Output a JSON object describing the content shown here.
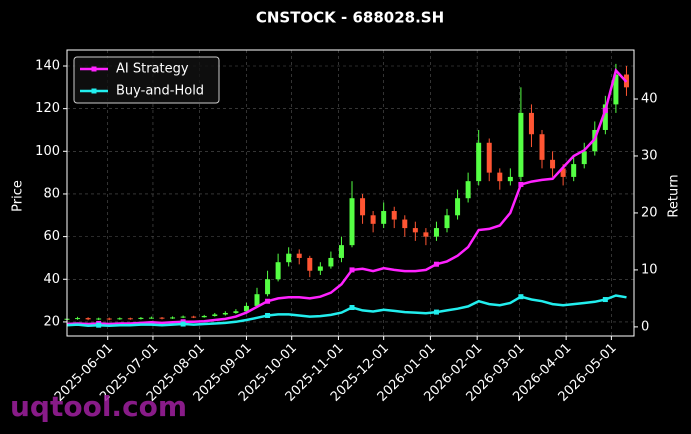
{
  "chart_data": {
    "type": "candlestick",
    "title": "CNSTOCK - 688028.SH",
    "ylabel": "Price",
    "y2label": "Return",
    "watermark": "uqtool.com",
    "grid": true,
    "legend_loc": "upper left",
    "up_color": "#55ff44",
    "down_color": "#ff5533",
    "xlim": [
      "2025-05-05",
      "2026-05-16"
    ],
    "xticks": [
      "2025-06-01",
      "2025-07-01",
      "2025-08-01",
      "2025-09-01",
      "2025-10-01",
      "2025-11-01",
      "2025-12-01",
      "2026-01-01",
      "2026-02-01",
      "2026-03-01",
      "2026-04-01",
      "2026-05-01"
    ],
    "ylim": [
      13.4,
      147.5
    ],
    "yticks": [
      20,
      40,
      60,
      80,
      100,
      120,
      140
    ],
    "y2lim": [
      -1.6,
      48.6
    ],
    "y2ticks": [
      0,
      10,
      20,
      30,
      40
    ],
    "x": [
      "2025-05-05",
      "2025-05-12",
      "2025-05-19",
      "2025-05-26",
      "2025-06-02",
      "2025-06-09",
      "2025-06-16",
      "2025-06-23",
      "2025-06-30",
      "2025-07-07",
      "2025-07-14",
      "2025-07-21",
      "2025-07-28",
      "2025-08-04",
      "2025-08-11",
      "2025-08-18",
      "2025-08-25",
      "2025-09-01",
      "2025-09-08",
      "2025-09-15",
      "2025-09-22",
      "2025-09-29",
      "2025-10-06",
      "2025-10-13",
      "2025-10-20",
      "2025-10-27",
      "2025-11-03",
      "2025-11-10",
      "2025-11-17",
      "2025-11-24",
      "2025-12-01",
      "2025-12-08",
      "2025-12-15",
      "2025-12-22",
      "2025-12-29",
      "2026-01-05",
      "2026-01-12",
      "2026-01-19",
      "2026-01-26",
      "2026-02-02",
      "2026-02-09",
      "2026-02-16",
      "2026-02-23",
      "2026-03-02",
      "2026-03-09",
      "2026-03-16",
      "2026-03-23",
      "2026-03-30",
      "2026-04-06",
      "2026-04-13",
      "2026-04-20",
      "2026-04-27",
      "2026-05-04",
      "2026-05-11"
    ],
    "open": [
      21.0,
      21.5,
      21.8,
      21.2,
      21.6,
      21.3,
      21.7,
      21.4,
      21.9,
      22.0,
      21.6,
      22.1,
      22.5,
      22.2,
      22.8,
      23.5,
      24.2,
      25.0,
      27.5,
      33.0,
      40.0,
      48.0,
      52.0,
      50.0,
      44.0,
      46.0,
      50.0,
      56.0,
      78.0,
      70.0,
      66.0,
      72.0,
      68.0,
      64.0,
      62.0,
      60.0,
      64.0,
      70.0,
      78.0,
      86.0,
      104.0,
      90.0,
      86.0,
      88.0,
      118.0,
      108.0,
      96.0,
      92.0,
      88.0,
      94.0,
      100.0,
      110.0,
      122.0,
      136.0
    ],
    "high": [
      22.3,
      22.4,
      22.2,
      22.0,
      22.0,
      22.1,
      22.0,
      22.3,
      22.5,
      22.3,
      22.6,
      23.0,
      22.9,
      23.3,
      24.2,
      25.0,
      26.0,
      29.0,
      36.0,
      44.0,
      52.0,
      55.0,
      54.0,
      51.0,
      48.0,
      53.0,
      60.0,
      86.0,
      80.0,
      72.0,
      76.0,
      74.0,
      70.0,
      67.0,
      64.0,
      67.0,
      73.0,
      82.0,
      90.0,
      110.0,
      106.0,
      92.0,
      92.0,
      130.0,
      122.0,
      110.0,
      100.0,
      94.0,
      98.0,
      104.0,
      114.0,
      126.0,
      141.0,
      140.0
    ],
    "low": [
      20.6,
      21.0,
      20.8,
      20.9,
      20.8,
      21.0,
      21.0,
      21.1,
      21.5,
      21.2,
      21.4,
      21.8,
      21.8,
      22.0,
      22.5,
      23.0,
      23.8,
      24.5,
      27.0,
      32.0,
      39.0,
      46.0,
      47.0,
      41.0,
      42.0,
      45.0,
      48.0,
      55.0,
      66.0,
      62.0,
      64.0,
      64.0,
      60.0,
      58.0,
      56.0,
      58.0,
      62.0,
      68.0,
      76.0,
      84.0,
      86.0,
      82.0,
      84.0,
      86.0,
      102.0,
      92.0,
      88.0,
      84.0,
      86.0,
      92.0,
      98.0,
      108.0,
      118.0,
      126.0
    ],
    "close": [
      21.5,
      21.8,
      21.2,
      21.6,
      21.3,
      21.7,
      21.4,
      21.9,
      22.0,
      21.6,
      22.1,
      22.5,
      22.2,
      22.8,
      23.5,
      24.2,
      25.0,
      27.5,
      33.0,
      40.0,
      48.0,
      52.0,
      50.0,
      44.0,
      46.0,
      50.0,
      56.0,
      78.0,
      70.0,
      66.0,
      72.0,
      68.0,
      64.0,
      62.0,
      60.0,
      64.0,
      70.0,
      78.0,
      86.0,
      104.0,
      90.0,
      86.0,
      88.0,
      118.0,
      108.0,
      96.0,
      92.0,
      88.0,
      94.0,
      100.0,
      110.0,
      122.0,
      136.0,
      130.0
    ],
    "series": [
      {
        "name": "AI Strategy",
        "color": "#ff22ff",
        "axis": "y2",
        "values": [
          0.5,
          0.6,
          0.5,
          0.6,
          0.5,
          0.6,
          0.6,
          0.7,
          0.8,
          0.7,
          0.8,
          0.9,
          0.9,
          1.0,
          1.2,
          1.4,
          1.8,
          2.5,
          3.5,
          4.5,
          5.0,
          5.2,
          5.2,
          5.0,
          5.3,
          6.0,
          7.5,
          10.0,
          10.2,
          9.8,
          10.3,
          10.0,
          9.8,
          9.8,
          10.0,
          11.0,
          11.5,
          12.5,
          14.0,
          17.0,
          17.2,
          17.8,
          20.0,
          25.0,
          25.5,
          25.8,
          26.0,
          28.0,
          30.0,
          31.0,
          33.0,
          38.0,
          45.0,
          43.0
        ]
      },
      {
        "name": "Buy-and-Hold",
        "color": "#22eeee",
        "axis": "y2",
        "values": [
          0.3,
          0.4,
          0.2,
          0.3,
          0.2,
          0.3,
          0.3,
          0.4,
          0.4,
          0.3,
          0.4,
          0.5,
          0.4,
          0.5,
          0.6,
          0.7,
          0.9,
          1.2,
          1.6,
          2.0,
          2.2,
          2.2,
          2.0,
          1.8,
          1.9,
          2.1,
          2.5,
          3.4,
          2.9,
          2.7,
          3.0,
          2.8,
          2.6,
          2.5,
          2.4,
          2.6,
          2.9,
          3.2,
          3.6,
          4.5,
          4.0,
          3.8,
          4.2,
          5.3,
          4.8,
          4.5,
          4.0,
          3.8,
          4.0,
          4.2,
          4.4,
          4.8,
          5.5,
          5.2
        ]
      }
    ]
  }
}
